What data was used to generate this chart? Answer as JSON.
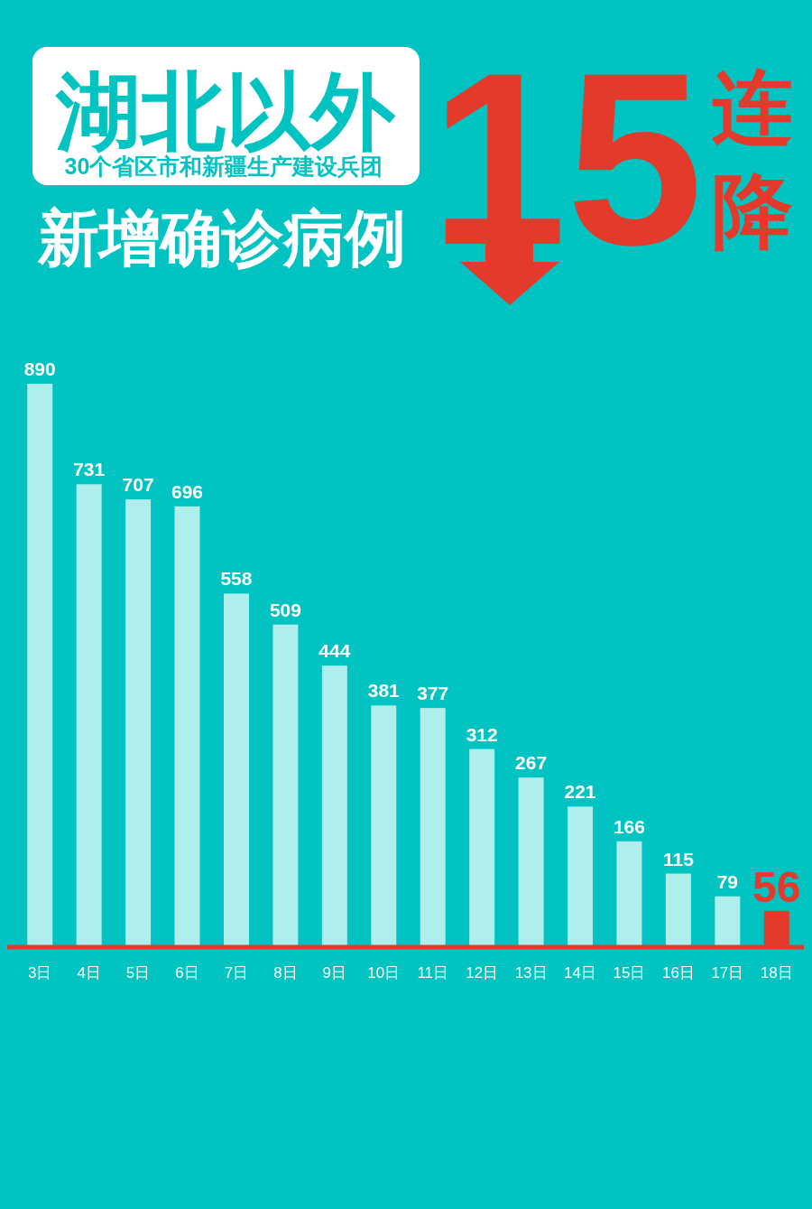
{
  "chart_data": {
    "type": "bar",
    "title": "湖北以外",
    "subtitle": "30个省区市和新疆生产建设兵团",
    "annotations": [
      "新增确诊病例",
      "15",
      "连降"
    ],
    "categories": [
      "3日",
      "4日",
      "5日",
      "6日",
      "7日",
      "8日",
      "9日",
      "10日",
      "11日",
      "12日",
      "13日",
      "14日",
      "15日",
      "16日",
      "17日",
      "18日"
    ],
    "values": [
      890,
      731,
      707,
      696,
      558,
      509,
      444,
      381,
      377,
      312,
      267,
      221,
      166,
      115,
      79,
      56
    ],
    "color": "#aeeeed",
    "colors": [
      "#aeeeed",
      "#aeeeed",
      "#aeeeed",
      "#aeeeed",
      "#aeeeed",
      "#aeeeed",
      "#aeeeed",
      "#aeeeed",
      "#aeeeed",
      "#aeeeed",
      "#aeeeed",
      "#aeeeed",
      "#aeeeed",
      "#aeeeed",
      "#aeeeed",
      "#e43a2b"
    ],
    "data_labels": true
  }
}
